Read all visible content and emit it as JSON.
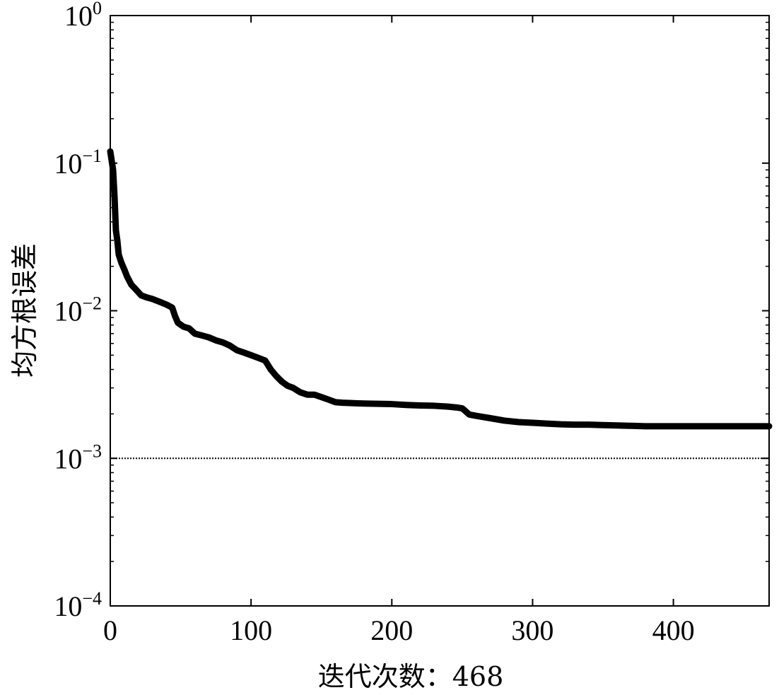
{
  "chart_data": {
    "type": "line",
    "title": "",
    "xlabel": "迭代次数：468",
    "ylabel": "均方根误差",
    "xlim": [
      0,
      468
    ],
    "ylim": [
      0.0001,
      1
    ],
    "yscale": "log",
    "x_ticks": [
      0,
      100,
      200,
      300,
      400
    ],
    "y_ticks": [
      {
        "value": 1,
        "base": "10",
        "exp": "0"
      },
      {
        "value": 0.1,
        "base": "10",
        "exp": "−1"
      },
      {
        "value": 0.01,
        "base": "10",
        "exp": "−2"
      },
      {
        "value": 0.001,
        "base": "10",
        "exp": "−3"
      },
      {
        "value": 0.0001,
        "base": "10",
        "exp": "−4"
      }
    ],
    "grid": false,
    "goal_line": {
      "value": 0.001,
      "style": "dotted",
      "color": "#000000"
    },
    "series": [
      {
        "color": "#000000",
        "x": [
          0,
          2,
          3,
          4,
          5,
          6,
          8,
          10,
          12,
          15,
          18,
          22,
          26,
          30,
          35,
          40,
          44,
          46,
          48,
          52,
          56,
          60,
          65,
          70,
          75,
          80,
          85,
          90,
          95,
          100,
          105,
          110,
          114,
          118,
          122,
          126,
          130,
          135,
          140,
          145,
          150,
          155,
          160,
          165,
          170,
          180,
          190,
          200,
          210,
          220,
          230,
          240,
          246,
          250,
          252,
          255,
          260,
          270,
          280,
          290,
          300,
          310,
          320,
          330,
          340,
          350,
          360,
          370,
          380,
          400,
          420,
          440,
          468
        ],
        "y": [
          0.12,
          0.09,
          0.06,
          0.035,
          0.03,
          0.024,
          0.021,
          0.019,
          0.017,
          0.015,
          0.014,
          0.0127,
          0.0123,
          0.012,
          0.0115,
          0.011,
          0.0105,
          0.0092,
          0.0083,
          0.0078,
          0.0076,
          0.007,
          0.0068,
          0.0066,
          0.0063,
          0.0061,
          0.0058,
          0.0054,
          0.0052,
          0.005,
          0.0048,
          0.0046,
          0.004,
          0.0036,
          0.0033,
          0.0031,
          0.003,
          0.0028,
          0.0027,
          0.0027,
          0.0026,
          0.0025,
          0.0024,
          0.00238,
          0.00237,
          0.00235,
          0.00234,
          0.00233,
          0.0023,
          0.00228,
          0.00227,
          0.00224,
          0.00221,
          0.00218,
          0.0021,
          0.00198,
          0.00194,
          0.00187,
          0.0018,
          0.00176,
          0.00174,
          0.00172,
          0.0017,
          0.00169,
          0.00169,
          0.00168,
          0.00167,
          0.00166,
          0.00165,
          0.00165,
          0.00165,
          0.00165,
          0.00165
        ]
      }
    ]
  },
  "colors": {
    "line": "#000000",
    "background": "#ffffff"
  }
}
